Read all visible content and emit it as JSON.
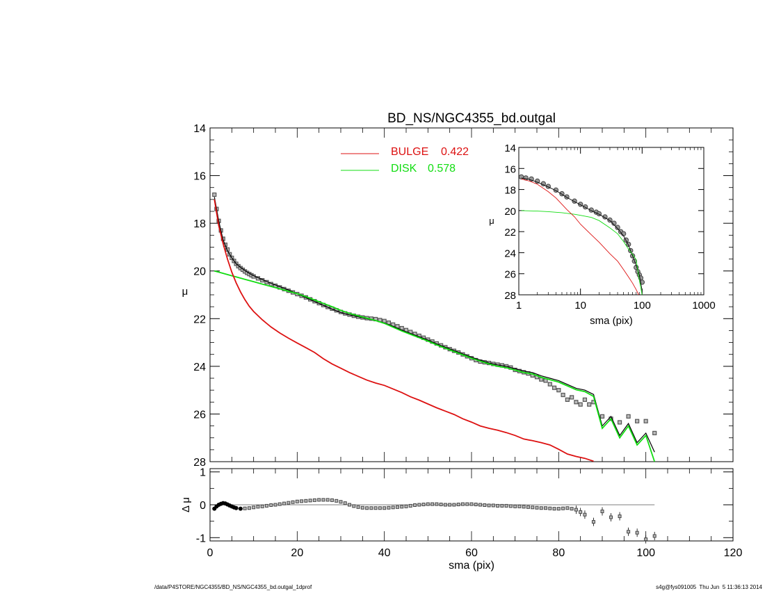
{
  "chart_data": [
    {
      "panel": "main",
      "type": "line",
      "title": "BD_NS/NGC4355_bd.outgal",
      "ylabel": "μ",
      "xlim": [
        0,
        120
      ],
      "ylim": [
        28,
        14
      ],
      "y_inverted": true,
      "yticks": [
        14,
        16,
        18,
        20,
        22,
        24,
        26,
        28
      ],
      "legend": {
        "placement": "top",
        "entries": [
          {
            "name": "BULGE",
            "value": "0.422",
            "color": "#dd1111"
          },
          {
            "name": "DISK",
            "value": "0.578",
            "color": "#11dd11"
          }
        ]
      },
      "series": [
        {
          "name": "data",
          "kind": "points",
          "color": "#555555",
          "x": [
            1,
            1.5,
            2,
            2.5,
            3,
            3.5,
            4,
            4.5,
            5,
            5.5,
            6,
            6.5,
            7,
            7.5,
            8,
            8.5,
            9,
            9.5,
            10,
            11,
            12,
            13,
            14,
            15,
            16,
            17,
            18,
            19,
            20,
            21,
            22,
            23,
            24,
            25,
            26,
            27,
            28,
            29,
            30,
            31,
            32,
            33,
            34,
            35,
            36,
            37,
            38,
            39,
            40,
            41,
            42,
            43,
            44,
            45,
            46,
            47,
            48,
            49,
            50,
            51,
            52,
            53,
            54,
            55,
            56,
            57,
            58,
            59,
            60,
            61,
            62,
            63,
            64,
            65,
            66,
            67,
            68,
            69,
            70,
            71,
            72,
            73,
            74,
            75,
            76,
            77,
            78,
            79,
            80,
            81,
            82,
            83,
            84,
            85,
            86,
            87,
            88,
            90,
            92,
            94,
            96,
            98,
            100,
            102
          ],
          "y": [
            16.8,
            17.4,
            17.9,
            18.3,
            18.65,
            18.9,
            19.1,
            19.3,
            19.45,
            19.58,
            19.7,
            19.8,
            19.88,
            19.95,
            20.02,
            20.08,
            20.13,
            20.18,
            20.23,
            20.31,
            20.39,
            20.47,
            20.55,
            20.62,
            20.69,
            20.76,
            20.83,
            20.9,
            20.97,
            21.04,
            21.11,
            21.19,
            21.27,
            21.35,
            21.43,
            21.51,
            21.58,
            21.65,
            21.72,
            21.78,
            21.83,
            21.88,
            21.92,
            21.95,
            21.98,
            22.0,
            22.02,
            22.06,
            22.1,
            22.17,
            22.25,
            22.32,
            22.4,
            22.48,
            22.56,
            22.64,
            22.72,
            22.8,
            22.88,
            22.96,
            23.04,
            23.12,
            23.2,
            23.28,
            23.35,
            23.42,
            23.5,
            23.58,
            23.66,
            23.74,
            23.8,
            23.83,
            23.86,
            23.9,
            23.93,
            23.96,
            24.0,
            24.05,
            24.15,
            24.2,
            24.25,
            24.3,
            24.38,
            24.45,
            24.55,
            24.6,
            24.75,
            24.9,
            25.0,
            25.2,
            25.4,
            25.3,
            25.5,
            25.6,
            25.4,
            25.6,
            25.5,
            26.1,
            26.2,
            26.35,
            26.1,
            26.3,
            26.3,
            26.8
          ]
        },
        {
          "name": "total",
          "kind": "line",
          "color": "#000000",
          "x": [
            1,
            2,
            3,
            4,
            5,
            6,
            7,
            8,
            9,
            10,
            12,
            14,
            16,
            18,
            20,
            22,
            24,
            26,
            28,
            30,
            32,
            34,
            36,
            38,
            40,
            42,
            44,
            46,
            48,
            50,
            52,
            54,
            56,
            58,
            60,
            62,
            64,
            66,
            68,
            70,
            72,
            74,
            76,
            78,
            80,
            82,
            84,
            86,
            88,
            90,
            92,
            94,
            96,
            98,
            100,
            102
          ],
          "y": [
            16.9,
            17.9,
            18.7,
            19.15,
            19.45,
            19.7,
            19.85,
            19.98,
            20.1,
            20.2,
            20.36,
            20.52,
            20.66,
            20.8,
            20.96,
            21.12,
            21.28,
            21.44,
            21.6,
            21.74,
            21.84,
            21.92,
            22.0,
            22.08,
            22.18,
            22.32,
            22.48,
            22.62,
            22.76,
            22.9,
            23.06,
            23.2,
            23.34,
            23.48,
            23.62,
            23.74,
            23.86,
            23.94,
            24.0,
            24.1,
            24.2,
            24.26,
            24.4,
            24.5,
            24.6,
            24.76,
            24.92,
            25.0,
            25.18,
            26.5,
            26.1,
            26.9,
            26.4,
            27.2,
            26.8,
            27.6
          ]
        },
        {
          "name": "disk",
          "kind": "line",
          "color": "#11dd11",
          "x": [
            1,
            2,
            3,
            4,
            5,
            6,
            8,
            10,
            12,
            14,
            16,
            18,
            20,
            22,
            24,
            26,
            28,
            30,
            32,
            34,
            36,
            38,
            40,
            42,
            44,
            46,
            48,
            50,
            52,
            54,
            56,
            58,
            60,
            62,
            64,
            66,
            68,
            70,
            72,
            74,
            76,
            78,
            80,
            82,
            84,
            86,
            88,
            90,
            92,
            94,
            96,
            98,
            100,
            102
          ],
          "y": [
            20.0,
            20.05,
            20.1,
            20.15,
            20.2,
            20.25,
            20.35,
            20.45,
            20.55,
            20.65,
            20.75,
            20.85,
            20.95,
            21.08,
            21.22,
            21.36,
            21.5,
            21.65,
            21.78,
            21.88,
            21.98,
            22.08,
            22.2,
            22.36,
            22.52,
            22.66,
            22.8,
            22.94,
            23.1,
            23.24,
            23.38,
            23.52,
            23.66,
            23.78,
            23.9,
            24.0,
            24.06,
            24.16,
            24.26,
            24.32,
            24.46,
            24.56,
            24.66,
            24.82,
            24.98,
            25.06,
            25.26,
            26.6,
            26.2,
            27.0,
            26.5,
            27.3,
            26.9,
            28.0
          ]
        },
        {
          "name": "bulge",
          "kind": "line",
          "color": "#dd1111",
          "x": [
            1,
            2,
            3,
            4,
            5,
            6,
            7,
            8,
            9,
            10,
            12,
            14,
            16,
            18,
            20,
            22,
            24,
            26,
            28,
            30,
            32,
            34,
            36,
            38,
            40,
            42,
            44,
            46,
            48,
            50,
            52,
            54,
            56,
            58,
            60,
            62,
            64,
            66,
            68,
            70,
            72,
            74,
            76,
            78,
            80,
            82,
            84,
            86,
            88
          ],
          "y": [
            17.0,
            18.1,
            18.85,
            19.5,
            20.05,
            20.5,
            20.88,
            21.2,
            21.48,
            21.7,
            22.05,
            22.35,
            22.6,
            22.82,
            23.02,
            23.22,
            23.42,
            23.68,
            23.9,
            24.08,
            24.26,
            24.42,
            24.58,
            24.7,
            24.8,
            24.95,
            25.1,
            25.28,
            25.42,
            25.58,
            25.74,
            25.88,
            26.02,
            26.2,
            26.34,
            26.5,
            26.6,
            26.68,
            26.78,
            26.9,
            27.05,
            27.12,
            27.2,
            27.3,
            27.48,
            27.68,
            27.78,
            27.86,
            27.98
          ]
        }
      ]
    },
    {
      "panel": "residual",
      "type": "scatter",
      "xlabel": "sma (pix)",
      "ylabel": "Δ μ",
      "xlim": [
        0,
        120
      ],
      "ylim": [
        -1.1,
        1.1
      ],
      "xticks": [
        0,
        20,
        40,
        60,
        80,
        100,
        120
      ],
      "yticks": [
        -1,
        0,
        1
      ],
      "series": [
        {
          "name": "residual",
          "x": [
            1,
            1.5,
            2,
            2.5,
            3,
            3.5,
            4,
            4.5,
            5,
            5.5,
            6,
            7,
            8,
            9,
            10,
            11,
            12,
            13,
            14,
            15,
            16,
            17,
            18,
            19,
            20,
            21,
            22,
            23,
            24,
            25,
            26,
            27,
            28,
            29,
            30,
            31,
            32,
            33,
            34,
            35,
            36,
            37,
            38,
            39,
            40,
            41,
            42,
            43,
            44,
            45,
            46,
            47,
            48,
            49,
            50,
            51,
            52,
            53,
            54,
            55,
            56,
            57,
            58,
            59,
            60,
            61,
            62,
            63,
            64,
            65,
            66,
            67,
            68,
            69,
            70,
            71,
            72,
            73,
            74,
            75,
            76,
            77,
            78,
            79,
            80,
            81,
            82,
            83,
            84,
            85,
            86,
            88,
            90,
            92,
            94,
            96,
            98,
            100,
            102
          ],
          "y": [
            -0.12,
            -0.05,
            0.0,
            0.03,
            0.05,
            0.04,
            0.01,
            -0.02,
            -0.05,
            -0.08,
            -0.1,
            -0.12,
            -0.11,
            -0.1,
            -0.08,
            -0.06,
            -0.05,
            -0.03,
            -0.01,
            0.0,
            0.02,
            0.04,
            0.06,
            0.08,
            0.1,
            0.11,
            0.12,
            0.13,
            0.14,
            0.15,
            0.15,
            0.15,
            0.14,
            0.12,
            0.09,
            0.05,
            0.0,
            -0.04,
            -0.07,
            -0.09,
            -0.1,
            -0.1,
            -0.1,
            -0.1,
            -0.1,
            -0.09,
            -0.08,
            -0.07,
            -0.06,
            -0.05,
            -0.03,
            -0.01,
            0.0,
            0.01,
            0.02,
            0.02,
            0.02,
            0.01,
            0.0,
            0.0,
            0.0,
            0.01,
            0.02,
            0.02,
            0.02,
            0.01,
            0.0,
            -0.01,
            -0.02,
            -0.02,
            -0.03,
            -0.03,
            -0.03,
            -0.04,
            -0.05,
            -0.05,
            -0.06,
            -0.07,
            -0.08,
            -0.09,
            -0.1,
            -0.1,
            -0.11,
            -0.12,
            -0.12,
            -0.11,
            -0.1,
            -0.12,
            -0.15,
            -0.22,
            -0.3,
            -0.52,
            -0.2,
            -0.38,
            -0.35,
            -0.82,
            -0.85,
            -1.05,
            -0.95
          ]
        }
      ]
    },
    {
      "panel": "inset",
      "type": "line",
      "xlabel": "sma (pix)",
      "ylabel": "μ",
      "xscale": "log",
      "xlim": [
        1,
        1000
      ],
      "ylim": [
        28,
        14
      ],
      "y_inverted": true,
      "xticks": [
        1,
        10,
        100,
        1000
      ],
      "yticks": [
        14,
        16,
        18,
        20,
        22,
        24,
        26,
        28
      ],
      "series": [
        {
          "name": "data",
          "kind": "points",
          "color": "#555555",
          "x": [
            1.1,
            1.3,
            1.6,
            2,
            2.5,
            3,
            4,
            5,
            6,
            8,
            10,
            12,
            15,
            18,
            20,
            25,
            30,
            35,
            40,
            45,
            50,
            55,
            60,
            65,
            70,
            75,
            80,
            85,
            90,
            95,
            100
          ],
          "y": [
            16.8,
            16.9,
            17.0,
            17.2,
            17.45,
            17.7,
            18.05,
            18.4,
            18.7,
            19.1,
            19.4,
            19.65,
            19.95,
            20.15,
            20.3,
            20.6,
            20.9,
            21.2,
            21.6,
            22.0,
            22.2,
            22.8,
            23.2,
            23.8,
            24.3,
            24.8,
            25.4,
            25.8,
            26.1,
            26.4,
            26.8
          ]
        },
        {
          "name": "total",
          "kind": "line",
          "color": "#000000",
          "x": [
            1.1,
            1.5,
            2,
            3,
            4,
            5,
            6,
            8,
            10,
            15,
            20,
            30,
            40,
            50,
            60,
            70,
            80,
            90,
            100
          ],
          "y": [
            16.9,
            17.05,
            17.3,
            17.75,
            18.1,
            18.45,
            18.75,
            19.15,
            19.45,
            20.0,
            20.35,
            20.95,
            21.7,
            22.4,
            23.3,
            24.3,
            25.2,
            26.1,
            27.6
          ]
        },
        {
          "name": "disk",
          "kind": "line",
          "color": "#11dd11",
          "x": [
            1.1,
            2,
            3,
            5,
            8,
            10,
            15,
            20,
            30,
            40,
            50,
            60,
            70,
            80,
            90,
            100
          ],
          "y": [
            20.0,
            20.05,
            20.1,
            20.2,
            20.35,
            20.45,
            20.65,
            20.95,
            21.65,
            22.2,
            22.94,
            23.66,
            24.16,
            24.66,
            26.6,
            28.0
          ]
        },
        {
          "name": "bulge",
          "kind": "line",
          "color": "#dd1111",
          "x": [
            1.1,
            1.5,
            2,
            3,
            4,
            5,
            6,
            8,
            10,
            15,
            20,
            30,
            40,
            50,
            60,
            70,
            80,
            88
          ],
          "y": [
            17.0,
            17.2,
            17.5,
            18.2,
            18.8,
            19.4,
            19.9,
            20.6,
            21.3,
            22.3,
            23.0,
            24.1,
            24.8,
            25.6,
            26.3,
            26.9,
            27.5,
            28.0
          ]
        }
      ]
    }
  ],
  "footer": {
    "path": "/data/P4STORE/NGC4355/BD_NS/NGC4355_bd.outgal_1dprof",
    "stamp": "s4g@fys091005  Thu Jun  5 11:36:13 2014"
  }
}
